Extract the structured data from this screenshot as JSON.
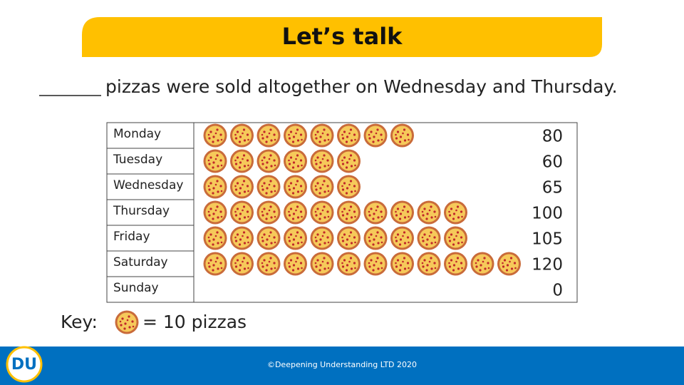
{
  "header": {
    "title": "Let’s talk"
  },
  "question": "pizzas were sold altogether on Wednesday and Thursday.",
  "chart_data": {
    "type": "pictogram",
    "categories": [
      "Monday",
      "Tuesday",
      "Wednesday",
      "Thursday",
      "Friday",
      "Saturday",
      "Sunday"
    ],
    "values": [
      80,
      60,
      65,
      100,
      105,
      120,
      0
    ],
    "key": {
      "prefix": "Key:",
      "value": 10,
      "label": "= 10 pizzas"
    }
  },
  "footer": {
    "logo": "DU",
    "text": "©Deepening Understanding LTD 2020"
  }
}
